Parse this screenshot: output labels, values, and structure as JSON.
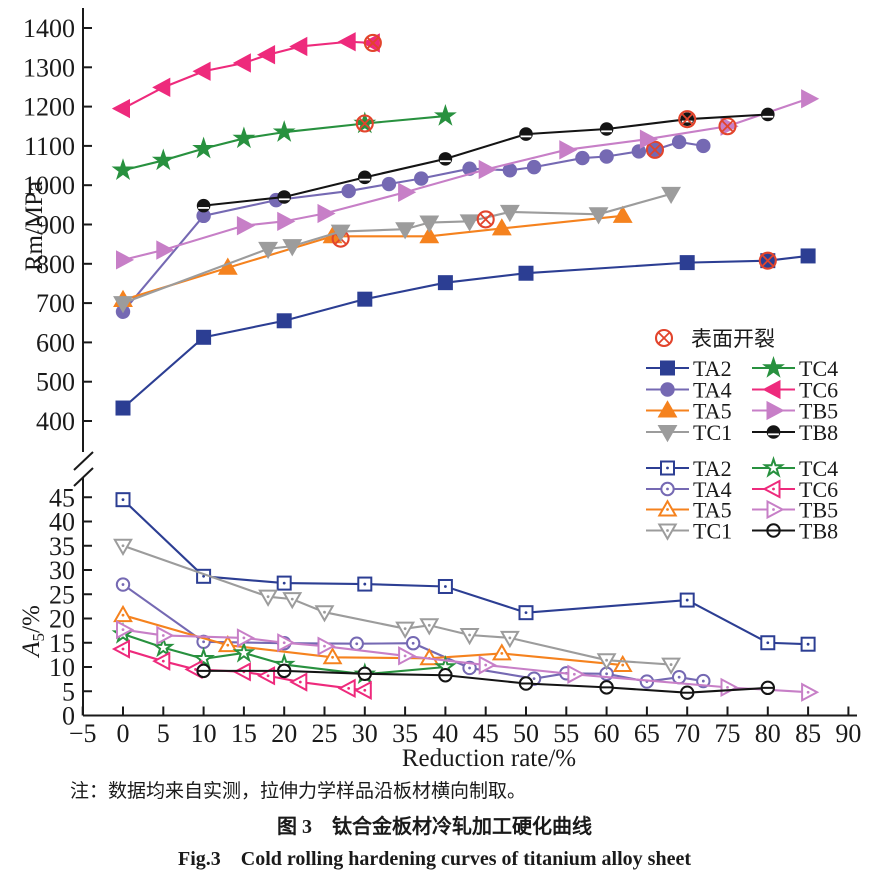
{
  "figure": {
    "note": "注：数据均来自实测，拉伸力学样品沿板材横向制取。",
    "caption_cn": "图 3　钛合金板材冷轧加工硬化曲线",
    "caption_en": "Fig.3　Cold rolling hardening curves of titanium alloy sheet"
  },
  "chart_data": {
    "type": "line",
    "title": "",
    "layout": "two stacked panels sharing x axis, broken left axis, no grid, legend middle-right",
    "x_axis": {
      "label": "Reduction rate/%",
      "range": [
        -5,
        90
      ],
      "ticks": [
        -5,
        0,
        5,
        10,
        15,
        20,
        25,
        30,
        35,
        40,
        45,
        50,
        55,
        60,
        65,
        70,
        75,
        80,
        85,
        90
      ]
    },
    "top_panel": {
      "y_label": "Rm/MPa",
      "y_range": [
        400,
        1400
      ],
      "y_ticks": [
        400,
        500,
        600,
        700,
        800,
        900,
        1000,
        1100,
        1200,
        1300,
        1400
      ],
      "grid": false,
      "marker_fill": "solid"
    },
    "bottom_panel": {
      "y_label_var": "A",
      "y_label_sub": "5",
      "y_label_unit": "/%",
      "y_range": [
        0,
        45
      ],
      "y_ticks": [
        0,
        5,
        10,
        15,
        20,
        25,
        30,
        35,
        40,
        45
      ],
      "grid": false,
      "marker_fill": "open"
    },
    "axis_break": true,
    "crack_marker": {
      "label": "表面开裂",
      "color": "#e2442c"
    },
    "legend": {
      "position": "middle-right",
      "rows": [
        [
          "TA2",
          "TC4"
        ],
        [
          "TA4",
          "TC6"
        ],
        [
          "TA5",
          "TB5"
        ],
        [
          "TC1",
          "TB8"
        ]
      ]
    },
    "series": [
      {
        "name": "TA2",
        "color": "#2c3e93",
        "marker": "square",
        "rm": {
          "x": [
            0,
            10,
            20,
            30,
            40,
            50,
            70,
            80,
            85
          ],
          "y": [
            433,
            613,
            655,
            710,
            752,
            776,
            803,
            808,
            820
          ],
          "crack": [
            80,
            808
          ]
        },
        "a5": {
          "x": [
            0,
            10,
            20,
            30,
            40,
            50,
            70,
            80,
            85
          ],
          "y": [
            44.5,
            28.7,
            27.3,
            27.1,
            26.6,
            21.2,
            23.8,
            15.0,
            14.7
          ]
        }
      },
      {
        "name": "TA4",
        "color": "#7569b3",
        "marker": "circle",
        "rm": {
          "x": [
            0,
            10,
            19,
            28,
            33,
            37,
            43,
            48,
            51,
            57,
            60,
            64,
            66,
            69,
            72
          ],
          "y": [
            678,
            922,
            962,
            985,
            1003,
            1017,
            1042,
            1038,
            1046,
            1069,
            1073,
            1086,
            1090,
            1110,
            1100
          ],
          "crack": [
            66,
            1090
          ]
        },
        "a5": {
          "x": [
            0,
            10,
            20,
            29,
            36,
            43,
            51,
            55,
            60,
            65,
            69,
            72
          ],
          "y": [
            27.0,
            15.2,
            14.9,
            14.8,
            14.9,
            9.8,
            7.6,
            8.7,
            8.6,
            7.0,
            7.9,
            7.1
          ]
        }
      },
      {
        "name": "TA5",
        "color": "#f5821e",
        "marker": "triangle-up",
        "rm": {
          "x": [
            0,
            13,
            26,
            38,
            47,
            62
          ],
          "y": [
            708,
            790,
            870,
            870,
            890,
            922
          ],
          "crack": [
            27,
            864
          ]
        },
        "a5": {
          "x": [
            0,
            13,
            26,
            38,
            47,
            62
          ],
          "y": [
            20.7,
            14.5,
            12.0,
            11.8,
            12.8,
            10.4
          ]
        }
      },
      {
        "name": "TC1",
        "color": "#9c9c9c",
        "marker": "triangle-down",
        "rm": {
          "x": [
            0,
            18,
            21,
            27,
            35,
            38,
            43,
            48,
            59,
            68
          ],
          "y": [
            700,
            838,
            845,
            882,
            888,
            905,
            908,
            932,
            926,
            978
          ],
          "crack": [
            45,
            913
          ]
        },
        "a5": {
          "x": [
            0,
            18,
            21,
            25,
            35,
            38,
            43,
            48,
            60,
            68
          ],
          "y": [
            35.0,
            24.5,
            24.0,
            21.3,
            17.9,
            18.6,
            16.6,
            16.0,
            11.4,
            10.5
          ]
        }
      },
      {
        "name": "TC4",
        "color": "#28913f",
        "marker": "star",
        "rm": {
          "x": [
            0,
            5,
            10,
            15,
            20,
            30,
            40
          ],
          "y": [
            1038,
            1063,
            1093,
            1119,
            1135,
            1157,
            1176
          ],
          "crack": [
            30,
            1157
          ]
        },
        "a5": {
          "x": [
            0,
            5,
            10,
            15,
            20,
            30,
            40
          ],
          "y": [
            16.8,
            14.0,
            11.7,
            12.9,
            10.5,
            8.5,
            10.0
          ]
        }
      },
      {
        "name": "TC6",
        "color": "#ee2a7c",
        "marker": "triangle-left",
        "rm": {
          "x": [
            0,
            5,
            10,
            15,
            18,
            22,
            28,
            31
          ],
          "y": [
            1195,
            1249,
            1290,
            1311,
            1332,
            1353,
            1365,
            1362
          ],
          "crack": [
            31,
            1362
          ]
        },
        "a5": {
          "x": [
            0,
            5,
            9,
            15,
            18,
            22,
            28,
            30
          ],
          "y": [
            13.7,
            11.2,
            9.5,
            9.0,
            8.2,
            6.9,
            5.6,
            5.2
          ]
        }
      },
      {
        "name": "TB5",
        "color": "#c77fc7",
        "marker": "triangle-right",
        "rm": {
          "x": [
            0,
            5,
            15,
            20,
            25,
            35,
            45,
            55,
            65,
            75,
            85
          ],
          "y": [
            810,
            835,
            897,
            908,
            928,
            982,
            1040,
            1090,
            1117,
            1150,
            1220
          ],
          "crack": [
            75,
            1150
          ]
        },
        "a5": {
          "x": [
            0,
            5,
            15,
            20,
            25,
            35,
            45,
            56,
            75,
            85
          ],
          "y": [
            17.7,
            16.5,
            16.0,
            15.0,
            14.3,
            12.3,
            10.4,
            8.5,
            5.8,
            4.8
          ]
        }
      },
      {
        "name": "TB8",
        "color": "#141414",
        "marker": "circle-half",
        "rm": {
          "x": [
            10,
            20,
            30,
            40,
            50,
            60,
            70,
            80
          ],
          "y": [
            948,
            970,
            1020,
            1067,
            1130,
            1143,
            1168,
            1180
          ],
          "crack": [
            70,
            1168
          ]
        },
        "a5": {
          "x": [
            10,
            20,
            30,
            40,
            50,
            60,
            70,
            80
          ],
          "y": [
            9.2,
            9.2,
            8.6,
            8.3,
            6.6,
            5.8,
            4.7,
            5.7
          ]
        }
      }
    ]
  }
}
